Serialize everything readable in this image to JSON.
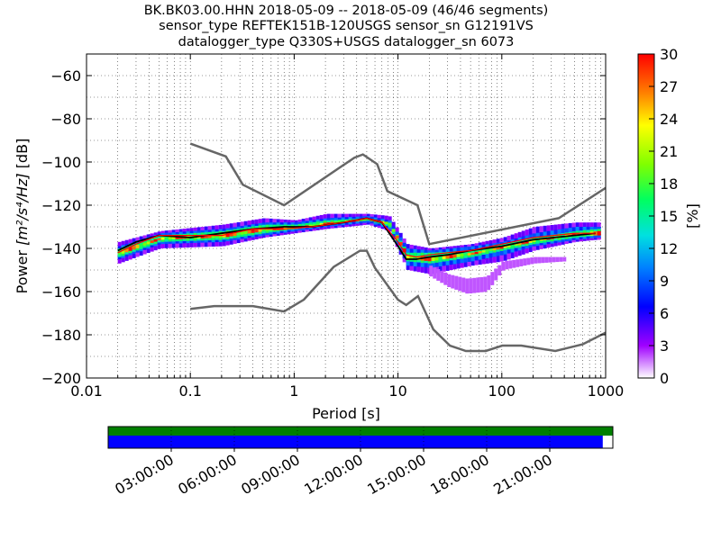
{
  "title_lines": [
    "BK.BK03.00.HHN   2018-05-09 -- 2018-05-09  (46/46 segments)",
    "sensor_type REFTEK151B-120USGS sensor_sn G12191VS",
    "datalogger_type Q330S+USGS datalogger_sn 6073"
  ],
  "chart_data": {
    "type": "heatmap",
    "xlabel": "Period [s]",
    "ylabel_prefix": "Power ",
    "ylabel_units": "[m²/s⁴/Hz]",
    "ylabel_suffix": " [dB]",
    "x_scale": "log",
    "xlim": [
      0.01,
      1000
    ],
    "ylim": [
      -200,
      -50
    ],
    "x_ticks": [
      0.01,
      0.1,
      1,
      10,
      100,
      1000
    ],
    "x_tick_labels": [
      "0.01",
      "0.1",
      "1",
      "10",
      "100",
      "1000"
    ],
    "y_ticks": [
      -60,
      -80,
      -100,
      -120,
      -140,
      -160,
      -180,
      -200
    ],
    "y_tick_labels": [
      "−60",
      "−80",
      "−100",
      "−120",
      "−140",
      "−160",
      "−180",
      "−200"
    ],
    "grid": "dotted",
    "colorbar": {
      "label": "[%]",
      "range": [
        0,
        30
      ],
      "ticks": [
        "0",
        "3",
        "6",
        "9",
        "12",
        "15",
        "18",
        "21",
        "24",
        "27",
        "30"
      ]
    },
    "psd_mode_curve": {
      "period": [
        0.02,
        0.03,
        0.05,
        0.1,
        0.2,
        0.4,
        0.8,
        1.5,
        3,
        5,
        7,
        10,
        12,
        15,
        20,
        30,
        50,
        100,
        200,
        500,
        800
      ],
      "power": [
        -142,
        -138,
        -134,
        -134,
        -134,
        -131,
        -131,
        -130,
        -128,
        -126,
        -128,
        -137,
        -143,
        -144,
        -143,
        -142,
        -141,
        -138,
        -135,
        -133,
        -133
      ]
    },
    "psd_mean_curve": {
      "period": [
        0.02,
        0.03,
        0.05,
        0.1,
        0.2,
        0.4,
        0.8,
        1.5,
        3,
        5,
        7,
        10,
        12,
        15,
        20,
        30,
        50,
        100,
        200,
        500,
        800
      ],
      "power": [
        -141,
        -137,
        -134,
        -135,
        -133,
        -131,
        -130,
        -130,
        -128,
        -126,
        -128,
        -139,
        -145,
        -145,
        -144,
        -143,
        -141,
        -139,
        -136,
        -134,
        -133
      ]
    },
    "nhnm": {
      "period": [
        0.1,
        0.22,
        0.32,
        0.8,
        3.8,
        4.6,
        6.3,
        7.9,
        15.4,
        20,
        354,
        1000
      ],
      "power": [
        -91.5,
        -97.4,
        -110.5,
        -120,
        -98,
        -96.5,
        -101,
        -113.5,
        -120,
        -138,
        -126,
        -112
      ]
    },
    "nlnm": {
      "period": [
        0.1,
        0.17,
        0.4,
        0.8,
        1.24,
        2.4,
        4.3,
        5,
        6,
        10,
        12,
        15.6,
        21.9,
        31.6,
        45,
        70,
        101,
        154,
        328,
        600,
        1000
      ],
      "power": [
        -168,
        -166.7,
        -166.7,
        -169.2,
        -163.7,
        -148.6,
        -141.1,
        -141.1,
        -149,
        -163.8,
        -166.2,
        -162.1,
        -177.5,
        -185,
        -187.5,
        -187.5,
        -185,
        -185,
        -187.5,
        -184.4,
        -179
      ]
    },
    "histogram_bands": [
      {
        "period": [
          0.02,
          0.05,
          0.2,
          0.5,
          1,
          2,
          5,
          8,
          12,
          20,
          50,
          100,
          200,
          500,
          800
        ],
        "low": [
          -147,
          -140,
          -139,
          -135,
          -133,
          -131,
          -129,
          -132,
          -150,
          -152,
          -148,
          -146,
          -141,
          -137,
          -136
        ],
        "high": [
          -137,
          -132,
          -129,
          -126,
          -127,
          -124,
          -124,
          -125,
          -138,
          -140,
          -138,
          -135,
          -130,
          -128,
          -128
        ],
        "percent": 4
      },
      {
        "period": [
          0.02,
          0.05,
          0.2,
          0.5,
          1,
          2,
          5,
          8,
          12,
          20,
          50,
          100,
          200,
          500,
          800
        ],
        "low": [
          -145,
          -138,
          -137,
          -134,
          -132,
          -130,
          -128,
          -131,
          -148,
          -149,
          -146,
          -143,
          -139,
          -136,
          -135
        ],
        "high": [
          -139,
          -133,
          -131,
          -128,
          -128,
          -126,
          -125,
          -127,
          -140,
          -141,
          -139,
          -137,
          -133,
          -130,
          -130
        ],
        "percent": 9
      },
      {
        "period": [
          0.02,
          0.05,
          0.2,
          0.5,
          1,
          2,
          5,
          8,
          12,
          20,
          50,
          100,
          200,
          500,
          800
        ],
        "low": [
          -144,
          -137,
          -136,
          -133,
          -131,
          -129,
          -127,
          -130,
          -146,
          -147,
          -144,
          -141,
          -138,
          -135,
          -134
        ],
        "high": [
          -140,
          -134,
          -132,
          -129,
          -129,
          -127,
          -126,
          -128,
          -142,
          -142,
          -141,
          -138,
          -135,
          -132,
          -131
        ],
        "percent": 16
      },
      {
        "period": [
          0.02,
          0.05,
          0.2,
          0.5,
          1,
          2,
          5,
          8,
          12,
          20,
          50,
          100,
          200,
          500,
          800
        ],
        "low": [
          -143,
          -136,
          -135,
          -132,
          -131,
          -129,
          -127,
          -129,
          -145,
          -146,
          -143,
          -140,
          -137,
          -134,
          -134
        ],
        "high": [
          -141,
          -135,
          -133,
          -130,
          -130,
          -128,
          -126,
          -128,
          -143,
          -144,
          -142,
          -139,
          -136,
          -133,
          -132
        ],
        "percent": 24
      }
    ],
    "outlier_band": {
      "period": [
        20,
        30,
        45,
        70,
        100,
        200,
        400
      ],
      "low": [
        -153,
        -158,
        -161,
        -160,
        -150,
        -147,
        -146
      ],
      "high": [
        -148,
        -152,
        -154,
        -153,
        -146,
        -144,
        -144
      ],
      "percent": 2
    }
  },
  "timeline": {
    "ticks": [
      "03:00:00",
      "06:00:00",
      "09:00:00",
      "12:00:00",
      "15:00:00",
      "18:00:00",
      "21:00:00"
    ],
    "data_coverage_fraction": 1.0,
    "psd_coverage_fraction": 0.98,
    "colors": {
      "coverage": "#007f00",
      "psd": "#0000ff"
    }
  }
}
